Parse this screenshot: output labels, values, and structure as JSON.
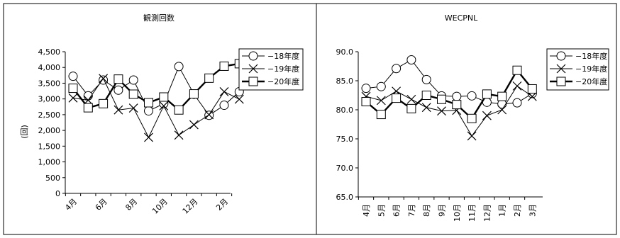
{
  "chart_data": [
    {
      "type": "line",
      "title": "観測回数",
      "ylabel": "(回)",
      "xlabel": "",
      "ylim": [
        0,
        4500
      ],
      "ytick_step": 500,
      "ytick_labels": [
        "0",
        "500",
        "1,000",
        "1,500",
        "2,000",
        "2,500",
        "3,000",
        "3,500",
        "4,000",
        "4,500"
      ],
      "x": [
        "4月",
        "5月",
        "6月",
        "7月",
        "8月",
        "9月",
        "10月",
        "11月",
        "12月",
        "1月",
        "2月",
        "3月"
      ],
      "x_tick_labels": [
        "4月",
        "6月",
        "8月",
        "10月",
        "12月",
        "2月"
      ],
      "x_label_every": 2,
      "legend_position": "top-right",
      "series": [
        {
          "name": "18年度",
          "marker": "circle",
          "stroke_width": 1,
          "values": [
            3720,
            3100,
            3600,
            3280,
            3600,
            2620,
            2850,
            4030,
            3150,
            2480,
            2800,
            3230
          ]
        },
        {
          "name": "19年度",
          "marker": "x",
          "stroke_width": 1,
          "values": [
            3030,
            2960,
            3650,
            2650,
            2710,
            1780,
            2780,
            1850,
            2180,
            2500,
            3230,
            2990
          ]
        },
        {
          "name": "20年度",
          "marker": "square",
          "stroke_width": 2.4,
          "values": [
            3340,
            2720,
            2850,
            3630,
            3150,
            2880,
            3060,
            2650,
            3160,
            3660,
            4040,
            4120
          ]
        }
      ]
    },
    {
      "type": "line",
      "title": "WECPNL",
      "ylabel": "",
      "xlabel": "",
      "ylim": [
        65,
        90
      ],
      "ytick_step": 5,
      "ytick_labels": [
        "65.0",
        "70.0",
        "75.0",
        "80.0",
        "85.0",
        "90.0"
      ],
      "x": [
        "4月",
        "5月",
        "6月",
        "7月",
        "8月",
        "9月",
        "10月",
        "11月",
        "12月",
        "1月",
        "2月",
        "3月"
      ],
      "x_tick_labels": [
        "4月",
        "5月",
        "6月",
        "7月",
        "8月",
        "9月",
        "10月",
        "11月",
        "12月",
        "1月",
        "2月",
        "3月"
      ],
      "x_label_every": 1,
      "legend_position": "top-right",
      "series": [
        {
          "name": "18年度",
          "marker": "circle",
          "stroke_width": 1,
          "values": [
            83.7,
            84.0,
            87.1,
            88.6,
            85.2,
            82.4,
            82.3,
            82.4,
            81.3,
            81.0,
            81.2,
            82.8
          ]
        },
        {
          "name": "19年度",
          "marker": "x",
          "stroke_width": 1,
          "values": [
            82.3,
            81.6,
            83.2,
            81.8,
            80.4,
            79.8,
            79.9,
            75.5,
            79.0,
            80.0,
            84.1,
            82.3
          ]
        },
        {
          "name": "20年度",
          "marker": "square",
          "stroke_width": 2.4,
          "values": [
            81.4,
            79.2,
            82.0,
            80.2,
            82.5,
            81.8,
            80.9,
            78.5,
            82.7,
            82.3,
            86.8,
            83.6
          ]
        }
      ]
    }
  ]
}
